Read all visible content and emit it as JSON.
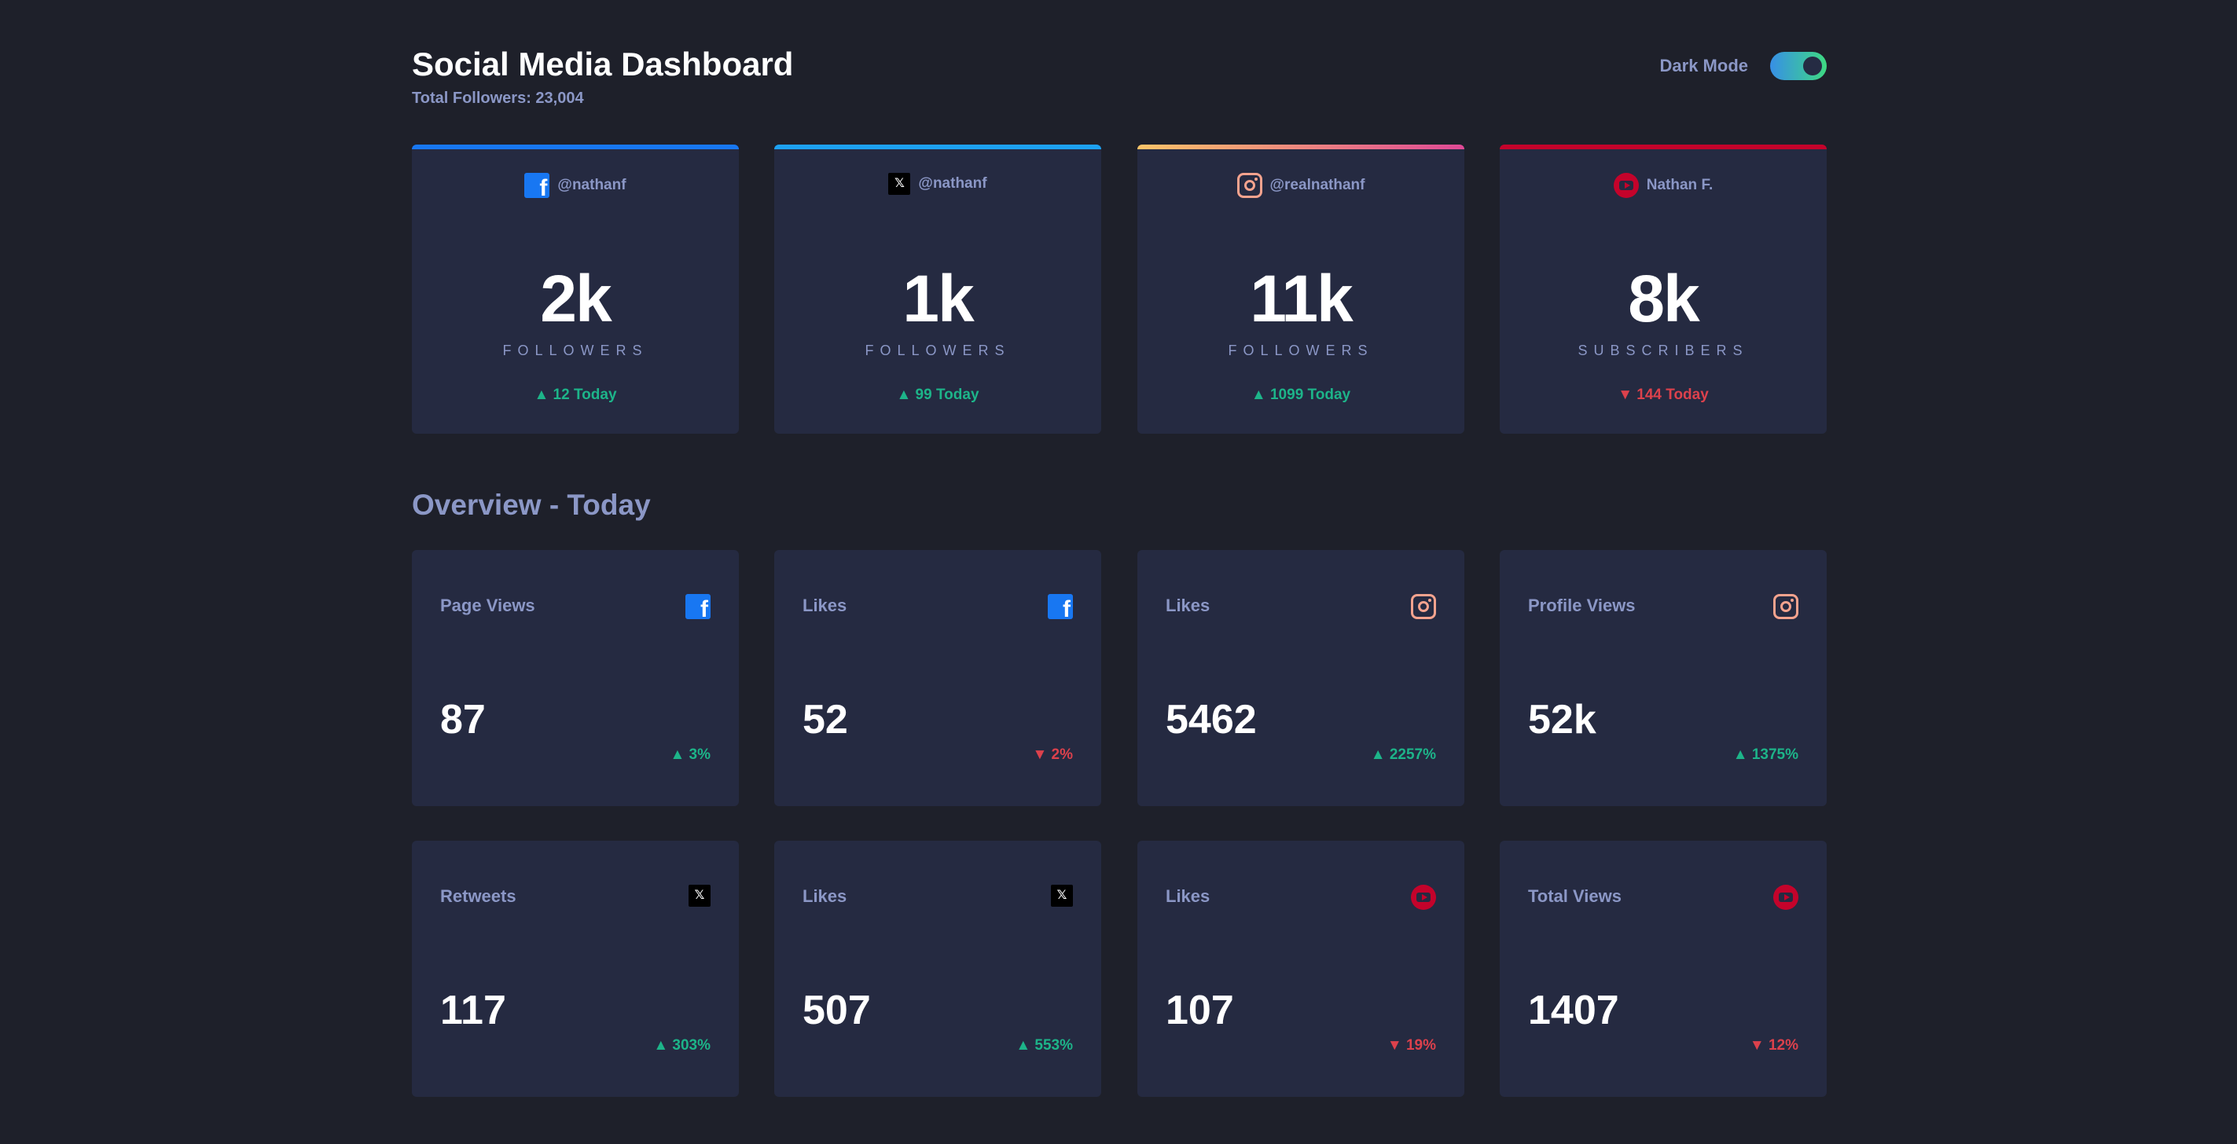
{
  "header": {
    "title": "Social Media Dashboard",
    "subtitle": "Total Followers: 23,004",
    "toggle_label": "Dark Mode",
    "dark_mode_on": true
  },
  "accent_colors": {
    "facebook": "#1877f2",
    "twitter": "#1da1f2",
    "instagram_start": "#fdc468",
    "instagram_end": "#df4996",
    "youtube": "#c4032b",
    "up": "#1db489",
    "down": "#dc414c"
  },
  "followers": [
    {
      "network": "facebook",
      "icon": "facebook-icon",
      "handle": "@nathanf",
      "count": "2k",
      "unit": "FOLLOWERS",
      "delta": "▲ 12 Today",
      "trend": "up"
    },
    {
      "network": "x",
      "icon": "x-icon",
      "handle": "@nathanf",
      "count": "1k",
      "unit": "FOLLOWERS",
      "delta": "▲ 99 Today",
      "trend": "up"
    },
    {
      "network": "instagram",
      "icon": "instagram-icon",
      "handle": "@realnathanf",
      "count": "11k",
      "unit": "FOLLOWERS",
      "delta": "▲ 1099 Today",
      "trend": "up"
    },
    {
      "network": "youtube",
      "icon": "youtube-icon",
      "handle": "Nathan F.",
      "count": "8k",
      "unit": "SUBSCRIBERS",
      "delta": "▼ 144 Today",
      "trend": "down"
    }
  ],
  "overview": {
    "title": "Overview - Today",
    "tiles": [
      {
        "label": "Page Views",
        "network": "facebook",
        "value": "87",
        "delta": "▲ 3%",
        "trend": "up"
      },
      {
        "label": "Likes",
        "network": "facebook",
        "value": "52",
        "delta": "▼ 2%",
        "trend": "down"
      },
      {
        "label": "Likes",
        "network": "instagram",
        "value": "5462",
        "delta": "▲ 2257%",
        "trend": "up"
      },
      {
        "label": "Profile Views",
        "network": "instagram",
        "value": "52k",
        "delta": "▲ 1375%",
        "trend": "up"
      },
      {
        "label": "Retweets",
        "network": "x",
        "value": "117",
        "delta": "▲ 303%",
        "trend": "up"
      },
      {
        "label": "Likes",
        "network": "x",
        "value": "507",
        "delta": "▲ 553%",
        "trend": "up"
      },
      {
        "label": "Likes",
        "network": "youtube",
        "value": "107",
        "delta": "▼ 19%",
        "trend": "down"
      },
      {
        "label": "Total Views",
        "network": "youtube",
        "value": "1407",
        "delta": "▼ 12%",
        "trend": "down"
      }
    ]
  }
}
